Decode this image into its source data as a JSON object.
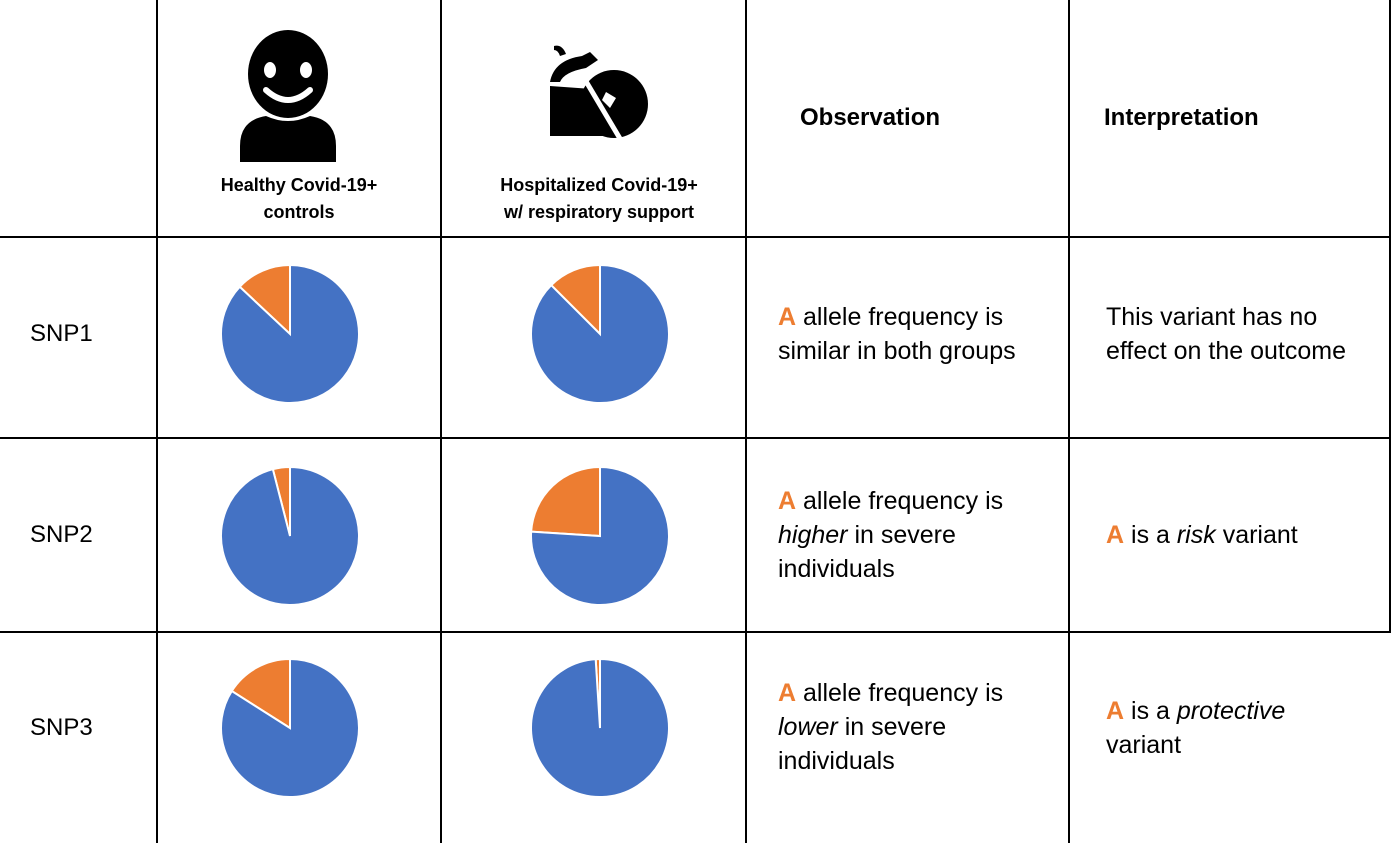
{
  "colors": {
    "pie_major": "#4472C4",
    "pie_minor": "#ED7D31",
    "allele_highlight": "#ED7D31",
    "grid": "#000000"
  },
  "header": {
    "group1": {
      "icon": "smiling-person-icon",
      "line1": "Healthy Covid-19+",
      "line2": "controls"
    },
    "group2": {
      "icon": "hospital-bed-patient-icon",
      "line1": "Hospitalized Covid-19+",
      "line2": "w/ respiratory support"
    },
    "observation": "Observation",
    "interpretation": "Interpretation"
  },
  "rows": [
    {
      "snp": "SNP1",
      "obs": {
        "allele": "A",
        "l1_rest": " allele frequency is",
        "l2": "similar in both groups"
      },
      "interp": {
        "l1": "This variant has no",
        "l2": "effect on the outcome"
      }
    },
    {
      "snp": "SNP2",
      "obs": {
        "allele": "A",
        "l1_rest": " allele frequency is",
        "l2_em": "higher",
        "l2_rest": " in severe",
        "l3": "individuals"
      },
      "interp": {
        "allele": "A",
        "pre": " is a ",
        "em": "risk",
        "post": " variant"
      }
    },
    {
      "snp": "SNP3",
      "obs": {
        "allele": "A",
        "l1_rest": " allele frequency is",
        "l2_em": "lower",
        "l2_rest": " in severe",
        "l3": "individuals"
      },
      "interp": {
        "allele": "A",
        "pre": " is a ",
        "em": "protective",
        "l2": "variant"
      }
    }
  ],
  "chart_data": [
    {
      "type": "pie",
      "row": "SNP1",
      "group": "Healthy Covid-19+ controls",
      "values": [
        0.87,
        0.13
      ]
    },
    {
      "type": "pie",
      "row": "SNP1",
      "group": "Hospitalized Covid-19+ w/ respiratory support",
      "values": [
        0.875,
        0.125
      ]
    },
    {
      "type": "pie",
      "row": "SNP2",
      "group": "Healthy Covid-19+ controls",
      "values": [
        0.96,
        0.04
      ]
    },
    {
      "type": "pie",
      "row": "SNP2",
      "group": "Hospitalized Covid-19+ w/ respiratory support",
      "values": [
        0.76,
        0.24
      ]
    },
    {
      "type": "pie",
      "row": "SNP3",
      "group": "Healthy Covid-19+ controls",
      "values": [
        0.84,
        0.16
      ]
    },
    {
      "type": "pie",
      "row": "SNP3",
      "group": "Hospitalized Covid-19+ w/ respiratory support",
      "values": [
        0.99,
        0.01
      ]
    }
  ]
}
